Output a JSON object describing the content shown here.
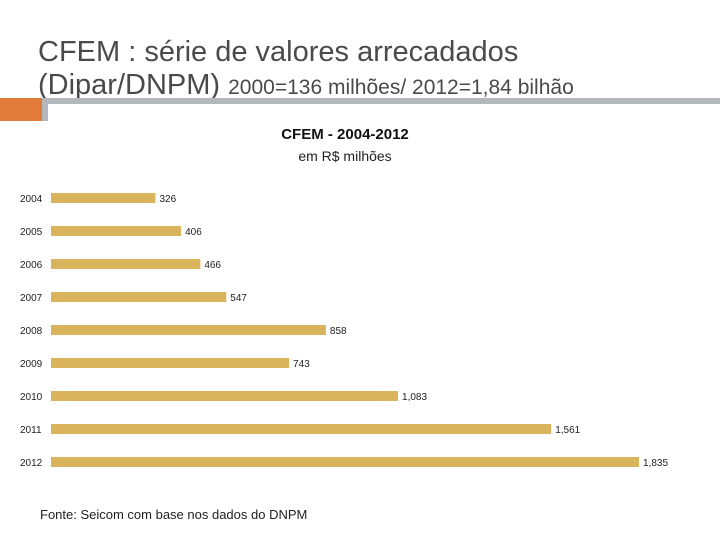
{
  "slide": {
    "title_main": "CFEM : série de valores arrecadados (Dipar/DNPM)",
    "title_small": "2000=136 milhões/ 2012=1,84 bilhão"
  },
  "source_note": "Fonte: Seicom com base nos dados do DNPM",
  "colors": {
    "bar": "#d9b45d",
    "accent_orange": "#e07b39",
    "accent_rule": "#b4b8bd"
  },
  "chart_data": {
    "type": "bar",
    "orientation": "horizontal",
    "title": "CFEM - 2004-2012",
    "subtitle": "em R$ milhões",
    "xlabel": "",
    "ylabel": "",
    "xlim": [
      0,
      1835
    ],
    "grid": false,
    "categories": [
      "2004",
      "2005",
      "2006",
      "2007",
      "2008",
      "2009",
      "2010",
      "2011",
      "2012"
    ],
    "values": [
      326,
      406,
      466,
      547,
      858,
      743,
      1083,
      1561,
      1835
    ],
    "value_labels": [
      "326",
      "406",
      "466",
      "547",
      "858",
      "743",
      "1,083",
      "1,561",
      "1,835"
    ]
  }
}
